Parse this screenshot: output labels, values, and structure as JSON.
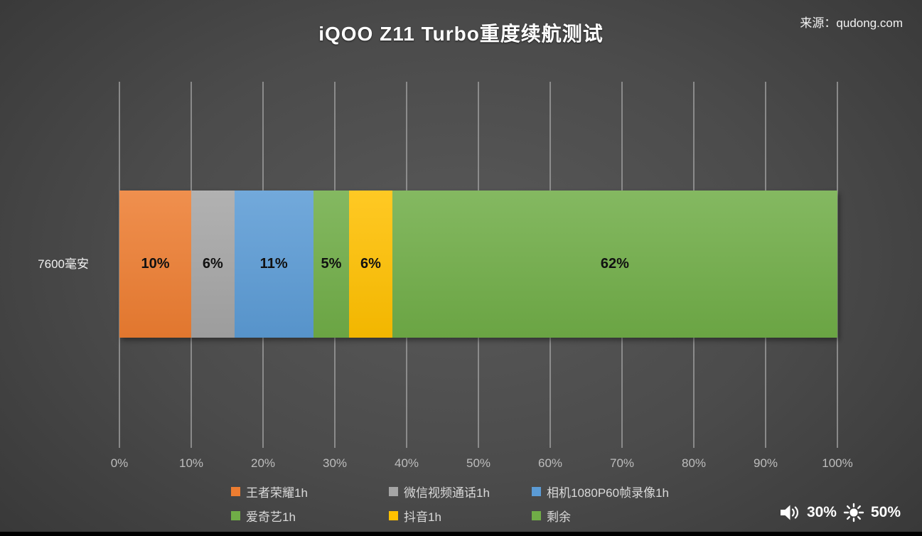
{
  "title": "iQOO Z11 Turbo重度续航测试",
  "source": "来源：qudong.com",
  "status": {
    "volume_icon": "speaker-icon",
    "volume": "30%",
    "brightness_icon": "sun-icon",
    "brightness": "50%"
  },
  "chart_data": {
    "type": "bar",
    "variant": "horizontal-stacked",
    "title": "iQOO Z11 Turbo重度续航测试",
    "category": "7600毫安",
    "series": [
      {
        "name": "王者荣耀1h",
        "value": 10,
        "label": "10%",
        "color": "#ED7D31"
      },
      {
        "name": "微信视频通话1h",
        "value": 6,
        "label": "6%",
        "color": "#A5A5A5"
      },
      {
        "name": "相机1080P60帧录像1h",
        "value": 11,
        "label": "11%",
        "color": "#5B9BD5"
      },
      {
        "name": "爱奇艺1h",
        "value": 5,
        "label": "5%",
        "color": "#70AD47"
      },
      {
        "name": "抖音1h",
        "value": 6,
        "label": "6%",
        "color": "#FFC000"
      },
      {
        "name": "剩余",
        "value": 62,
        "label": "62%",
        "color": "#70AD47"
      }
    ],
    "xlim": [
      0,
      100
    ],
    "x_ticks": [
      "0%",
      "10%",
      "20%",
      "30%",
      "40%",
      "50%",
      "60%",
      "70%",
      "80%",
      "90%",
      "100%"
    ],
    "grid": true,
    "gridline_color": "#9b9b9b",
    "background": "dark-radial-gradient",
    "legend_position": "bottom"
  }
}
